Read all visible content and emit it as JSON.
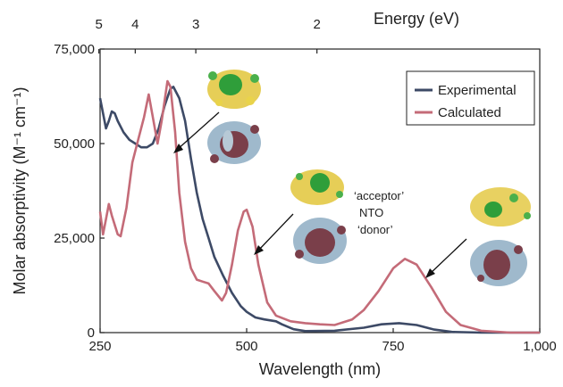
{
  "chart_data": {
    "type": "line",
    "xlabel": "Wavelength (nm)",
    "ylabel": "Molar absorptivity (M⁻¹ cm⁻¹)",
    "xlim": [
      250,
      1000
    ],
    "ylim": [
      0,
      75000
    ],
    "x_ticks": [
      250,
      500,
      750,
      1000
    ],
    "x_tick_labels": [
      "250",
      "500",
      "750",
      "1,000"
    ],
    "y_ticks": [
      0,
      25000,
      50000,
      75000
    ],
    "y_tick_labels": [
      "0",
      "25,000",
      "50,000",
      "75,000"
    ],
    "top_axis": {
      "label": "Energy (eV)",
      "ticks": [
        5,
        4,
        3,
        2
      ],
      "tick_labels": [
        "5",
        "4",
        "3",
        "2"
      ]
    },
    "legend": {
      "placement": "top-right"
    },
    "series": [
      {
        "name": "Experimental",
        "color": "#3d4a66",
        "points": [
          [
            250,
            62000
          ],
          [
            255,
            58000
          ],
          [
            260,
            54000
          ],
          [
            265,
            56000
          ],
          [
            270,
            58500
          ],
          [
            275,
            58000
          ],
          [
            280,
            56000
          ],
          [
            290,
            53000
          ],
          [
            300,
            51000
          ],
          [
            310,
            50000
          ],
          [
            320,
            49000
          ],
          [
            330,
            49000
          ],
          [
            340,
            50000
          ],
          [
            350,
            54000
          ],
          [
            360,
            60000
          ],
          [
            370,
            64500
          ],
          [
            375,
            65000
          ],
          [
            385,
            62000
          ],
          [
            395,
            56000
          ],
          [
            405,
            46000
          ],
          [
            415,
            37000
          ],
          [
            425,
            30000
          ],
          [
            435,
            25000
          ],
          [
            445,
            20000
          ],
          [
            460,
            15000
          ],
          [
            475,
            10500
          ],
          [
            490,
            7000
          ],
          [
            500,
            5500
          ],
          [
            515,
            4000
          ],
          [
            530,
            3500
          ],
          [
            550,
            3000
          ],
          [
            560,
            2200
          ],
          [
            580,
            900
          ],
          [
            600,
            400
          ],
          [
            650,
            500
          ],
          [
            700,
            1300
          ],
          [
            730,
            2200
          ],
          [
            760,
            2500
          ],
          [
            790,
            2000
          ],
          [
            820,
            800
          ],
          [
            850,
            200
          ],
          [
            900,
            0
          ],
          [
            1000,
            0
          ]
        ]
      },
      {
        "name": "Calculated",
        "color": "#c46b78",
        "points": [
          [
            250,
            32000
          ],
          [
            255,
            26000
          ],
          [
            260,
            30000
          ],
          [
            265,
            34000
          ],
          [
            270,
            31000
          ],
          [
            280,
            26000
          ],
          [
            285,
            25500
          ],
          [
            295,
            33000
          ],
          [
            305,
            45000
          ],
          [
            315,
            51000
          ],
          [
            325,
            57000
          ],
          [
            333,
            63000
          ],
          [
            340,
            57000
          ],
          [
            348,
            50000
          ],
          [
            355,
            56000
          ],
          [
            365,
            66500
          ],
          [
            370,
            65000
          ],
          [
            378,
            53000
          ],
          [
            385,
            37000
          ],
          [
            395,
            24000
          ],
          [
            405,
            17000
          ],
          [
            415,
            14000
          ],
          [
            425,
            13500
          ],
          [
            435,
            13000
          ],
          [
            445,
            11000
          ],
          [
            458,
            8500
          ],
          [
            465,
            10500
          ],
          [
            475,
            18000
          ],
          [
            485,
            27000
          ],
          [
            495,
            32000
          ],
          [
            500,
            32500
          ],
          [
            510,
            28000
          ],
          [
            520,
            18000
          ],
          [
            535,
            8000
          ],
          [
            550,
            4500
          ],
          [
            575,
            3000
          ],
          [
            600,
            2500
          ],
          [
            625,
            2200
          ],
          [
            650,
            2000
          ],
          [
            680,
            3500
          ],
          [
            700,
            6000
          ],
          [
            725,
            11000
          ],
          [
            750,
            17000
          ],
          [
            770,
            19500
          ],
          [
            790,
            18000
          ],
          [
            815,
            12000
          ],
          [
            840,
            5500
          ],
          [
            865,
            2000
          ],
          [
            900,
            500
          ],
          [
            950,
            0
          ],
          [
            1000,
            0
          ]
        ]
      }
    ],
    "annotations": [
      {
        "text": "‘acceptor’"
      },
      {
        "text": "NTO"
      },
      {
        "text": "‘donor’"
      }
    ]
  }
}
